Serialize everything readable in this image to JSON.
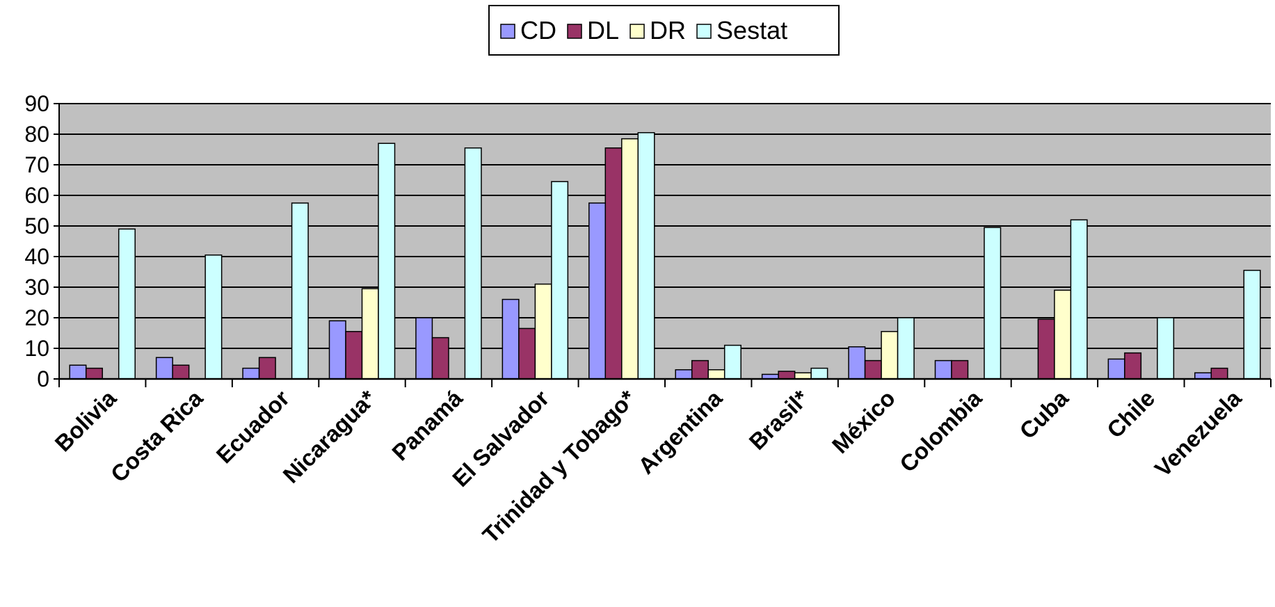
{
  "chart_data": {
    "type": "bar",
    "categories": [
      "Bolivia",
      "Costa Rica",
      "Ecuador",
      "Nicaragua*",
      "Panamá",
      "El Salvador",
      "Trinidad y Tobago*",
      "Argentina",
      "Brasil*",
      "México",
      "Colombia",
      "Cuba",
      "Chile",
      "Venezuela"
    ],
    "series": [
      {
        "name": "CD",
        "color": "#9999ff",
        "values": [
          4.5,
          7,
          3.5,
          19,
          20,
          26,
          57.5,
          3,
          1.5,
          10.5,
          6,
          null,
          6.5,
          2
        ]
      },
      {
        "name": "DL",
        "color": "#993366",
        "values": [
          3.5,
          4.5,
          7,
          15.5,
          13.5,
          16.5,
          75.5,
          6,
          2.5,
          6,
          6,
          19.5,
          8.5,
          3.5
        ]
      },
      {
        "name": "DR",
        "color": "#ffffcc",
        "values": [
          null,
          null,
          null,
          29.5,
          null,
          31,
          78.5,
          3,
          2,
          15.5,
          null,
          29,
          null,
          null
        ]
      },
      {
        "name": "Sestat",
        "color": "#ccffff",
        "values": [
          49,
          40.5,
          57.5,
          77,
          75.5,
          64.5,
          80.5,
          11,
          3.5,
          20,
          49.5,
          52,
          20,
          35.5
        ]
      }
    ],
    "yticks": [
      "0",
      "10",
      "20",
      "30",
      "40",
      "50",
      "60",
      "70",
      "80",
      "90"
    ],
    "ylim": [
      0,
      90
    ],
    "grid": true,
    "legend_position": "top-center",
    "plot_background": "#c0c0c0"
  }
}
